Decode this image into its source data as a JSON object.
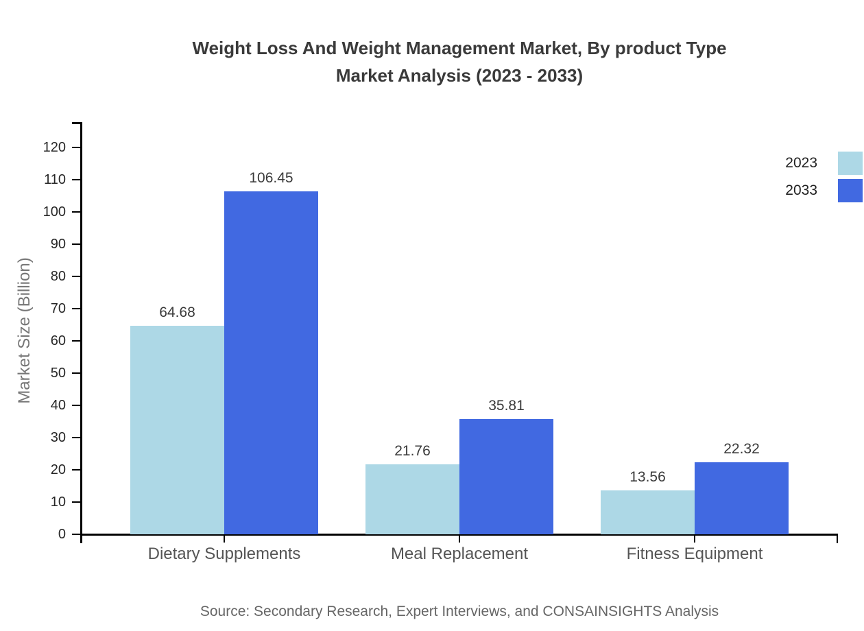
{
  "chart_data": {
    "type": "bar",
    "title": "Weight Loss And Weight Management Market, By product Type Market Analysis (2023 - 2033)",
    "title_lines": [
      "Weight Loss And Weight Management Market, By product Type",
      "Market Analysis (2023 - 2033)"
    ],
    "categories": [
      "Dietary Supplements",
      "Meal Replacement",
      "Fitness Equipment"
    ],
    "series": [
      {
        "name": "2023",
        "color": "#add8e6",
        "values": [
          64.68,
          21.76,
          13.56
        ]
      },
      {
        "name": "2033",
        "color": "#4169e1",
        "values": [
          106.45,
          35.81,
          22.32
        ]
      }
    ],
    "xlabel": "",
    "ylabel": "Market Size (Billion)",
    "ylim": [
      0,
      120
    ],
    "ytick_step": 10,
    "grid": false,
    "legend_position": "top-right",
    "value_labels_shown": true
  },
  "legend": {
    "items": [
      {
        "label": "2023",
        "color": "#add8e6"
      },
      {
        "label": "2033",
        "color": "#4169e1"
      }
    ]
  },
  "footer": {
    "source": "Source: Secondary Research, Expert Interviews, and CONSAINSIGHTS Analysis"
  },
  "colors": {
    "series_2023": "#add8e6",
    "series_2033": "#4169e1",
    "axis": "#000000",
    "title_text": "#3a3a3a",
    "background": "#ffffff"
  }
}
